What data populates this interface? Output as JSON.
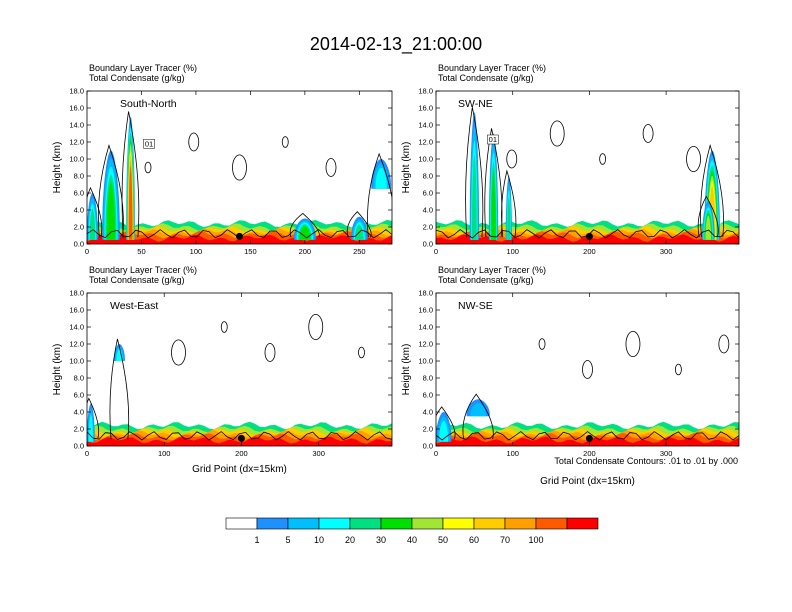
{
  "figure_title": "2014-02-13_21:00:00",
  "colors": {
    "levels": [
      "#ffffff",
      "#1e90ff",
      "#00bfff",
      "#00ffff",
      "#00e080",
      "#00e000",
      "#a0e632",
      "#ffff00",
      "#ffcc00",
      "#ffa000",
      "#ff5a00",
      "#ff0000"
    ],
    "marker": "#000000",
    "contour": "#000000"
  },
  "colorbar": {
    "labels": [
      "1",
      "5",
      "10",
      "20",
      "30",
      "40",
      "50",
      "60",
      "70",
      "100"
    ]
  },
  "footnote": "Total Condensate Contours: .01 to .01 by .000",
  "chart_data": [
    {
      "type": "heatmap",
      "panel": "South-North",
      "subtitle_lines": [
        "Boundary Layer Tracer   (%)",
        "Total Condensate   (g/kg)"
      ],
      "xlabel": "",
      "ylabel": "Height (km)",
      "xlim": [
        0,
        280
      ],
      "ylim": [
        0,
        18
      ],
      "xticks": [
        0,
        50,
        100,
        150,
        200,
        250
      ],
      "xtick_labels": [
        "0",
        "50",
        "100",
        "150",
        "200",
        "250"
      ],
      "yticks": [
        0,
        2,
        4,
        6,
        8,
        10,
        12,
        14,
        16,
        18
      ],
      "ytick_labels": [
        "0.0",
        "2.0",
        "4.0",
        "6.0",
        "8.0",
        "10.0",
        "12.0",
        "14.0",
        "16.0",
        "18.0"
      ],
      "marker_x": 140,
      "contour_label": "01",
      "plumes": [
        {
          "x": 40,
          "top": 15,
          "width": 8,
          "peak": 100
        },
        {
          "x": 22,
          "top": 11,
          "width": 16,
          "peak": 30
        },
        {
          "x": 5,
          "top": 6,
          "width": 10,
          "peak": 20
        },
        {
          "x": 200,
          "top": 3,
          "width": 20,
          "peak": 30
        },
        {
          "x": 250,
          "top": 3.2,
          "width": 15,
          "peak": 20
        },
        {
          "x": 270,
          "top": 10,
          "width": 18,
          "peak": 10,
          "base": 6.5
        }
      ]
    },
    {
      "type": "heatmap",
      "panel": "SW-NE",
      "subtitle_lines": [
        "Boundary Layer Tracer   (%)",
        "Total Condensate   (g/kg)"
      ],
      "xlabel": "",
      "ylabel": "Height (km)",
      "xlim": [
        0,
        395
      ],
      "ylim": [
        0,
        18
      ],
      "xticks": [
        0,
        100,
        200,
        300
      ],
      "xtick_labels": [
        "0",
        "100",
        "200",
        "300"
      ],
      "yticks": [
        0,
        2,
        4,
        6,
        8,
        10,
        12,
        14,
        16,
        18
      ],
      "ytick_labels": [
        "0.0",
        "2.0",
        "4.0",
        "6.0",
        "8.0",
        "10.0",
        "12.0",
        "14.0",
        "16.0",
        "18.0"
      ],
      "marker_x": 200,
      "contour_label": "01",
      "plumes": [
        {
          "x": 50,
          "top": 15.5,
          "width": 12,
          "peak": 20
        },
        {
          "x": 75,
          "top": 13,
          "width": 12,
          "peak": 30
        },
        {
          "x": 95,
          "top": 8,
          "width": 8,
          "peak": 20
        },
        {
          "x": 360,
          "top": 11,
          "width": 20,
          "peak": 60
        },
        {
          "x": 355,
          "top": 5,
          "width": 16,
          "peak": 40
        }
      ]
    },
    {
      "type": "heatmap",
      "panel": "West-East",
      "subtitle_lines": [
        "Boundary Layer Tracer   (%)",
        "Total Condensate   (g/kg)"
      ],
      "xlabel": "Grid Point  (dx=15km)",
      "ylabel": "Height (km)",
      "xlim": [
        0,
        395
      ],
      "ylim": [
        0,
        18
      ],
      "xticks": [
        0,
        100,
        200,
        300
      ],
      "xtick_labels": [
        "0",
        "100",
        "200",
        "300"
      ],
      "yticks": [
        0,
        2,
        4,
        6,
        8,
        10,
        12,
        14,
        16,
        18
      ],
      "ytick_labels": [
        "0.0",
        "2.0",
        "4.0",
        "6.0",
        "8.0",
        "10.0",
        "12.0",
        "14.0",
        "16.0",
        "18.0"
      ],
      "marker_x": 200,
      "contour_label": "",
      "plumes": [
        {
          "x": 42,
          "top": 12,
          "width": 14,
          "peak": 10,
          "base": 10
        },
        {
          "x": 5,
          "top": 5,
          "width": 10,
          "peak": 10
        }
      ]
    },
    {
      "type": "heatmap",
      "panel": "NW-SE",
      "subtitle_lines": [
        "Boundary Layer Tracer   (%)",
        "Total Condensate   (g/kg)"
      ],
      "xlabel": "Grid Point  (dx=15km)",
      "ylabel": "Height (km)",
      "xlim": [
        0,
        395
      ],
      "ylim": [
        0,
        18
      ],
      "xticks": [
        0,
        100,
        200,
        300
      ],
      "xtick_labels": [
        "0",
        "100",
        "200",
        "300"
      ],
      "yticks": [
        0,
        2,
        4,
        6,
        8,
        10,
        12,
        14,
        16,
        18
      ],
      "ytick_labels": [
        "0.0",
        "2.0",
        "4.0",
        "6.0",
        "8.0",
        "10.0",
        "12.0",
        "14.0",
        "16.0",
        "18.0"
      ],
      "marker_x": 200,
      "contour_label": "",
      "plumes": [
        {
          "x": 55,
          "top": 5.5,
          "width": 30,
          "peak": 5,
          "base": 3.5
        },
        {
          "x": 10,
          "top": 4,
          "width": 20,
          "peak": 10
        }
      ]
    }
  ]
}
